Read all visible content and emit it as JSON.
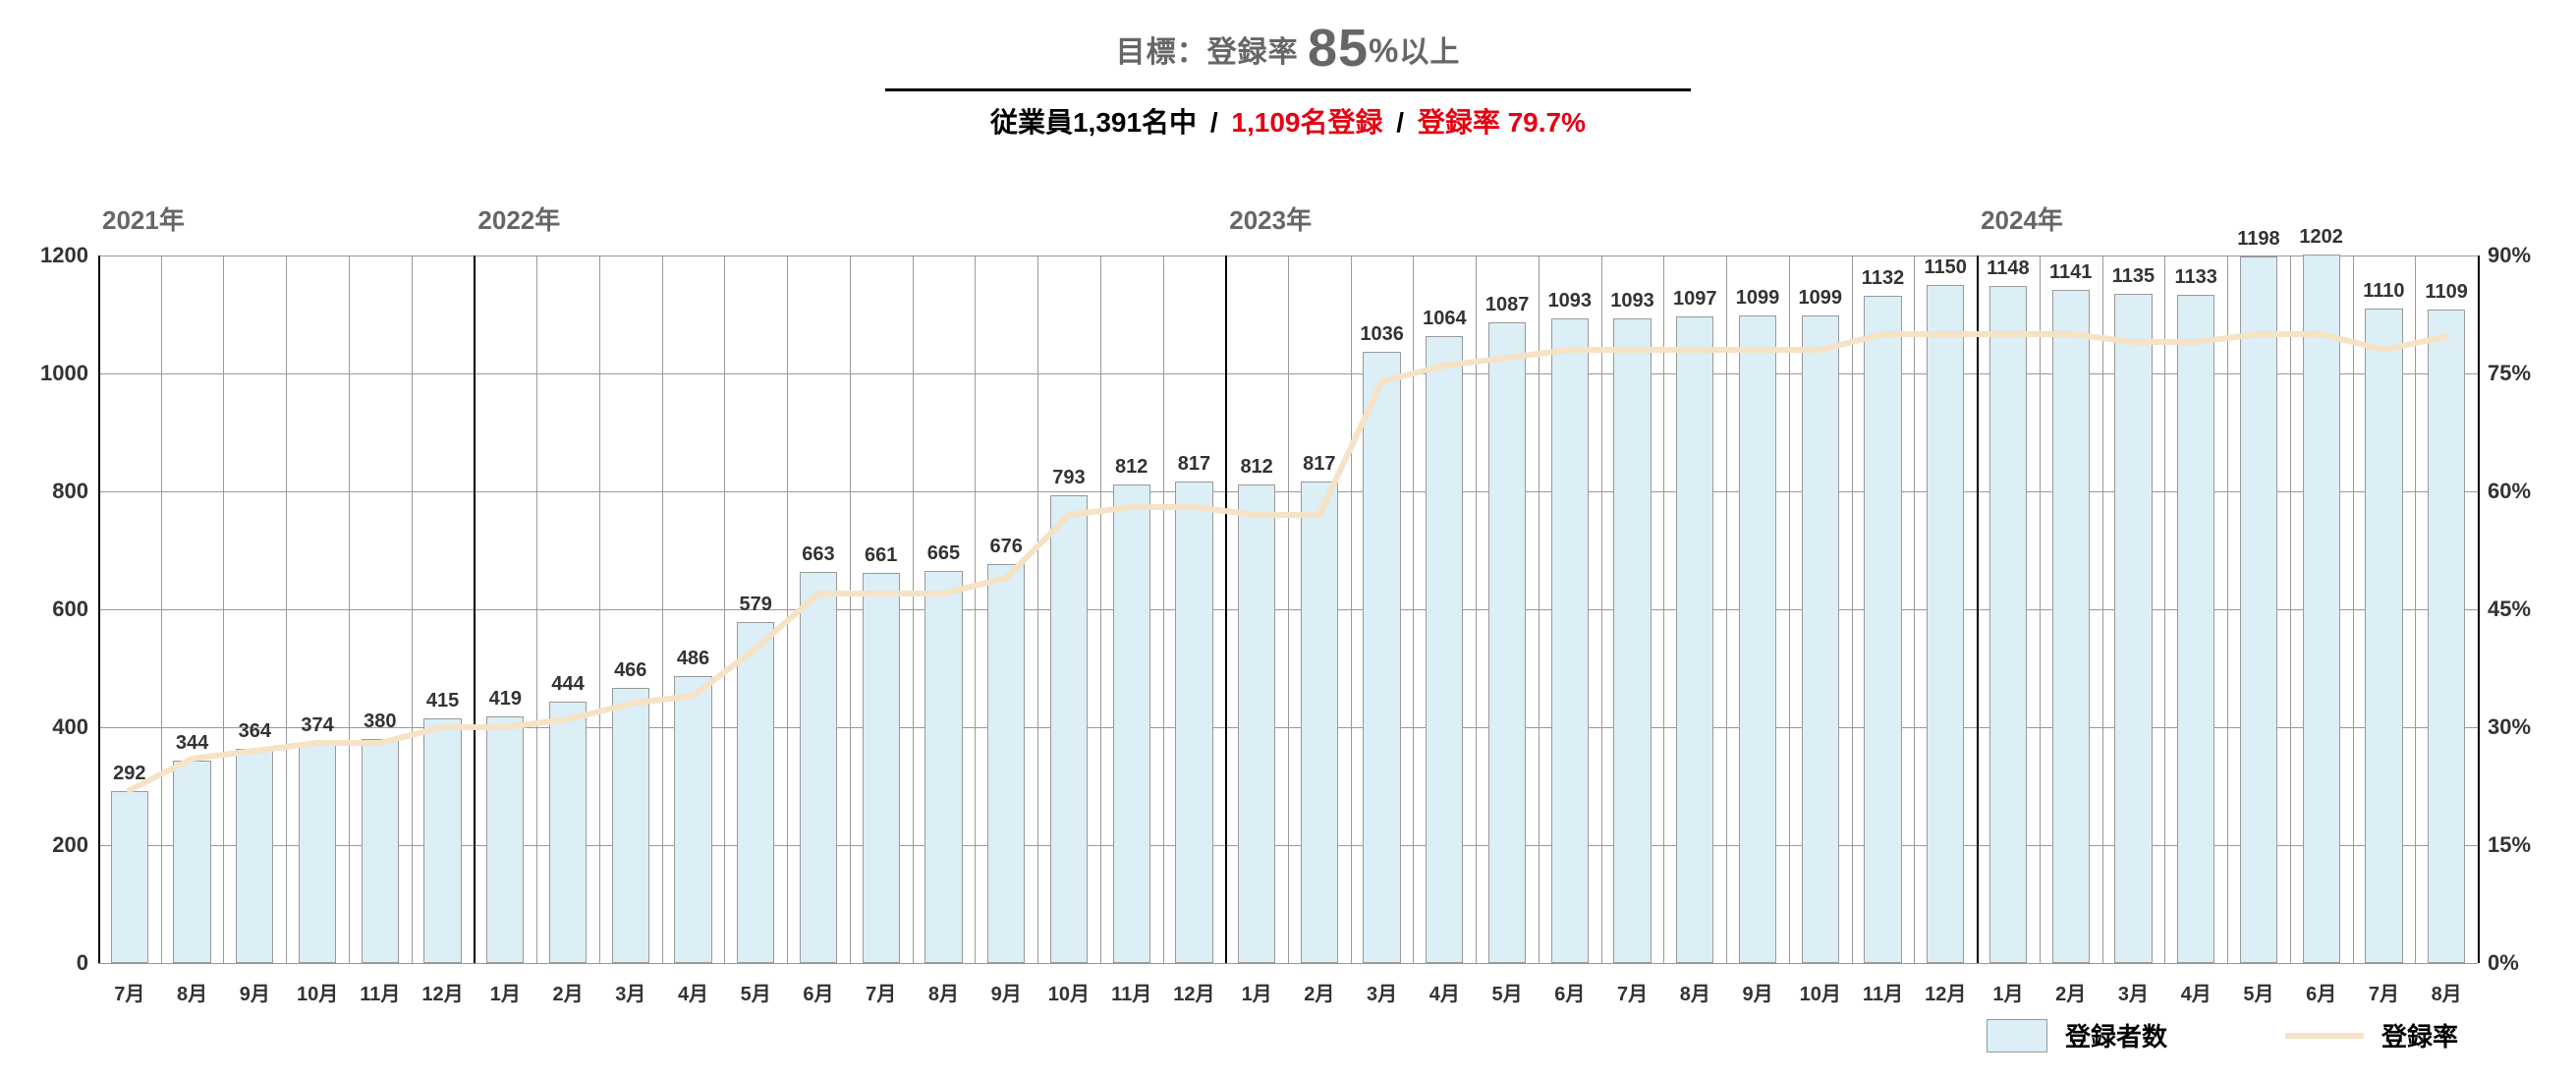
{
  "title": {
    "prefix": "目標：登録率 ",
    "big": "85",
    "pct": "%",
    "suffix": "以上"
  },
  "subtitle": {
    "part1": "従業員1,391名中",
    "part2": "1,109名登録",
    "part3": "登録率 79.7%"
  },
  "colors": {
    "bar_fill": "#dceef6",
    "bar_border": "#999999",
    "line": "#f6e2c4",
    "grid": "#999999",
    "text": "#333333",
    "title_gray": "#666666",
    "red": "#e60012",
    "black": "#000000",
    "background": "#ffffff"
  },
  "chart": {
    "type": "bar+line",
    "y_left": {
      "min": 0,
      "max": 1200,
      "step": 200,
      "ticks": [
        0,
        200,
        400,
        600,
        800,
        1000,
        1200
      ]
    },
    "y_right": {
      "min": 0,
      "max": 90,
      "step": 15,
      "ticks": [
        0,
        15,
        30,
        45,
        60,
        75,
        90
      ],
      "suffix": "%"
    },
    "bar_width_ratio": 0.6,
    "line_width": 6,
    "years": [
      {
        "label": "2021年",
        "start_index": 0
      },
      {
        "label": "2022年",
        "start_index": 6
      },
      {
        "label": "2023年",
        "start_index": 18
      },
      {
        "label": "2024年",
        "start_index": 30
      }
    ],
    "months": [
      "7月",
      "8月",
      "9月",
      "10月",
      "11月",
      "12月",
      "1月",
      "2月",
      "3月",
      "4月",
      "5月",
      "6月",
      "7月",
      "8月",
      "9月",
      "10月",
      "11月",
      "12月",
      "1月",
      "2月",
      "3月",
      "4月",
      "5月",
      "6月",
      "7月",
      "8月",
      "9月",
      "10月",
      "11月",
      "12月",
      "1月",
      "2月",
      "3月",
      "4月",
      "5月",
      "6月",
      "7月",
      "8月"
    ],
    "bar_values": [
      292,
      344,
      364,
      374,
      380,
      415,
      419,
      444,
      466,
      486,
      579,
      663,
      661,
      665,
      676,
      793,
      812,
      817,
      812,
      817,
      1036,
      1064,
      1087,
      1093,
      1093,
      1097,
      1099,
      1099,
      1132,
      1150,
      1148,
      1141,
      1135,
      1133,
      1198,
      1202,
      1110,
      1109
    ],
    "line_values_pct": [
      22,
      26,
      27,
      28,
      28,
      30,
      30,
      31,
      33,
      34,
      40,
      47,
      47,
      47,
      49,
      57,
      58,
      58,
      57,
      57,
      74,
      76,
      77,
      78,
      78,
      78,
      78,
      78,
      80,
      80,
      80,
      80,
      79,
      79,
      80,
      80,
      78,
      79.7
    ]
  },
  "legend": {
    "bar": "登録者数",
    "line": "登録率"
  }
}
